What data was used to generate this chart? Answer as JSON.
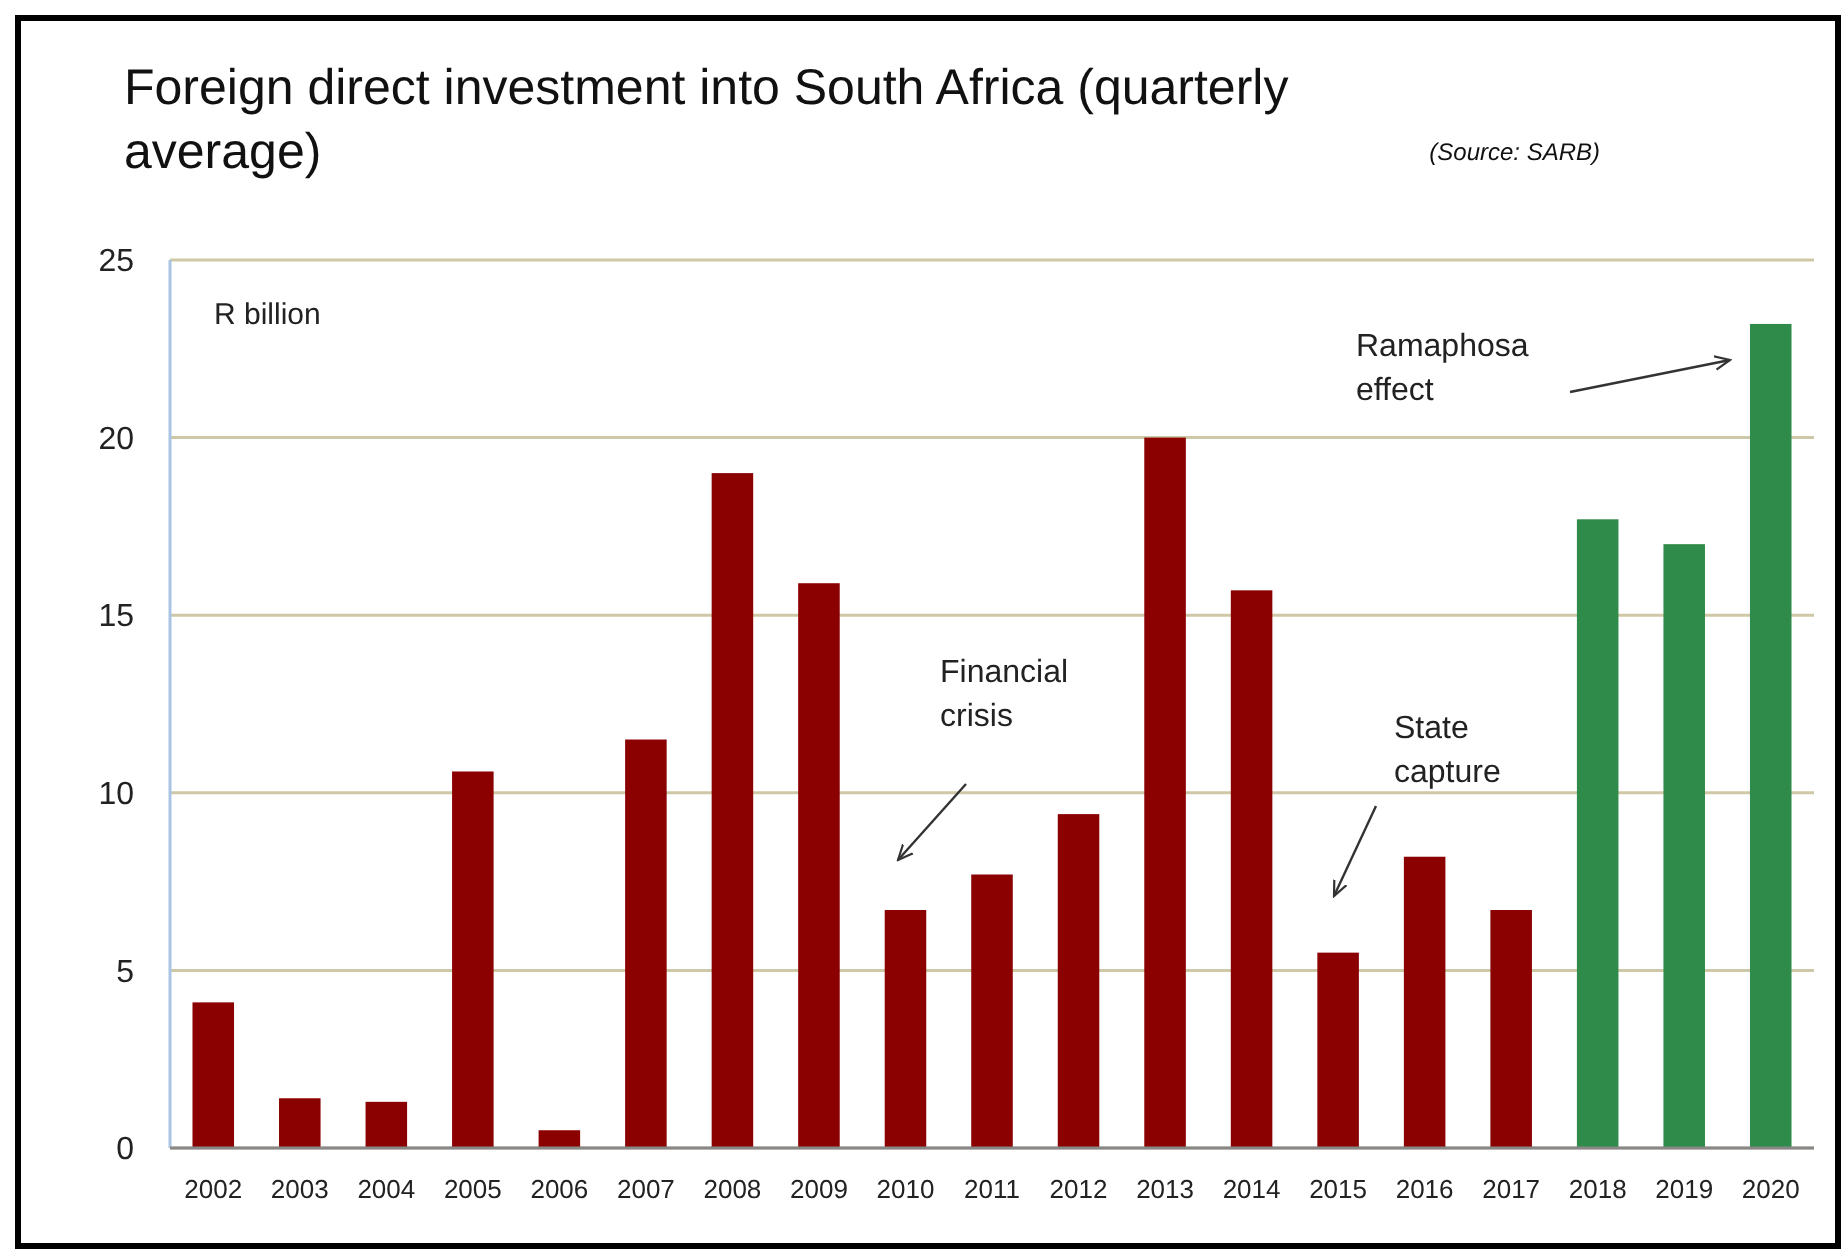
{
  "chart_data": {
    "type": "bar",
    "title": "Foreign direct investment into South Africa (quarterly average)",
    "ylabel": "R billion",
    "categories": [
      "2002",
      "2003",
      "2004",
      "2005",
      "2006",
      "2007",
      "2008",
      "2009",
      "2010",
      "2011",
      "2012",
      "2013",
      "2014",
      "2015",
      "2016",
      "2017",
      "2018",
      "2019",
      "2020"
    ],
    "values": [
      4.1,
      1.4,
      1.3,
      10.6,
      0.5,
      11.5,
      19.0,
      15.9,
      6.7,
      7.7,
      9.4,
      20.0,
      15.7,
      5.5,
      8.2,
      6.7,
      17.7,
      17.0,
      23.2
    ],
    "colors": [
      "#8b0000",
      "#8b0000",
      "#8b0000",
      "#8b0000",
      "#8b0000",
      "#8b0000",
      "#8b0000",
      "#8b0000",
      "#8b0000",
      "#8b0000",
      "#8b0000",
      "#8b0000",
      "#8b0000",
      "#8b0000",
      "#8b0000",
      "#8b0000",
      "#2e8b4a",
      "#2e8b4a",
      "#2e8b4a"
    ],
    "ylim": [
      0,
      25
    ],
    "yticks": [
      0,
      5,
      10,
      15,
      20,
      25
    ],
    "grid": "y",
    "annotations": [
      "Financial crisis",
      "State capture",
      "Ramaphosa effect",
      "(Source: SARB)"
    ]
  }
}
